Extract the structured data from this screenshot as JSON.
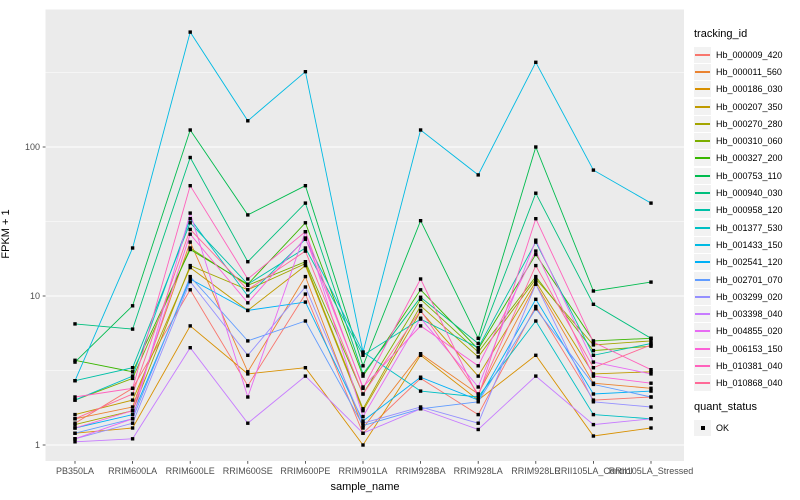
{
  "figure": {
    "background": "#FFFFFF",
    "panel_background": "#EBEBEB",
    "grid_color": "#FFFFFF",
    "tick_mark_color": "#333333",
    "axis_text_color": "#4D4D4D",
    "marker_color": "#000000"
  },
  "chart_data": {
    "type": "line",
    "title": "",
    "xlabel": "sample_name",
    "ylabel": "FPKM + 1",
    "y_scale": "log10",
    "y_ticks": [
      "1",
      "10",
      "100"
    ],
    "y_minor_gridlines": [
      3.1623,
      31.623,
      316.23
    ],
    "ylim": [
      1,
      830
    ],
    "grid": true,
    "legend_position": "right",
    "point_marker": "filled-black-square",
    "categories": [
      "PB350LA",
      "RRIM600LA",
      "RRIM600LE",
      "RRIM600SE",
      "RRIM600PE",
      "RRIM901LA",
      "RRIM928BA",
      "RRIM928LA",
      "RRIM928LE",
      "RRII105LA_Control",
      "RRII105LA_Stressed"
    ],
    "series": [
      {
        "name": "Hb_000009_420",
        "color": "#F8766D",
        "values": [
          1.4,
          2.4,
          11,
          2.5,
          10.3,
          1.2,
          2.8,
          1.6,
          8.5,
          2.0,
          2.1
        ]
      },
      {
        "name": "Hb_000011_560",
        "color": "#EA8331",
        "values": [
          1.5,
          1.8,
          23,
          3.1,
          13.5,
          1.3,
          4.1,
          2.2,
          12,
          2.6,
          2.4
        ]
      },
      {
        "name": "Hb_000186_030",
        "color": "#D89000",
        "values": [
          1.2,
          1.3,
          6.3,
          3.0,
          3.3,
          1.0,
          4.0,
          2.0,
          4.0,
          1.15,
          1.3
        ]
      },
      {
        "name": "Hb_000207_350",
        "color": "#C09B00",
        "values": [
          1.6,
          2.0,
          15.5,
          8.0,
          16,
          1.7,
          7.9,
          2.9,
          12.5,
          3.0,
          3.1
        ]
      },
      {
        "name": "Hb_000270_280",
        "color": "#A3A500",
        "values": [
          1.37,
          1.7,
          16,
          11,
          16.5,
          1.75,
          8.6,
          3.9,
          13,
          4.7,
          5.0
        ]
      },
      {
        "name": "Hb_000310_060",
        "color": "#7CAE00",
        "values": [
          2.0,
          2.8,
          21,
          11.8,
          17,
          2.2,
          9.5,
          4.2,
          13.5,
          4.3,
          4.6
        ]
      },
      {
        "name": "Hb_000327_200",
        "color": "#39B600",
        "values": [
          3.7,
          3.1,
          20.5,
          12,
          31,
          2.9,
          11,
          4.4,
          19,
          5.0,
          5.2
        ]
      },
      {
        "name": "Hb_000753_110",
        "color": "#00BB4E",
        "values": [
          3.6,
          8.6,
          130,
          35,
          55,
          3.4,
          32,
          5.2,
          100,
          10.8,
          12.4
        ]
      },
      {
        "name": "Hb_000940_030",
        "color": "#00BF7D",
        "values": [
          6.5,
          6.0,
          85,
          17,
          42,
          3.0,
          9.8,
          4.8,
          49,
          8.8,
          5.2
        ]
      },
      {
        "name": "Hb_000958_120",
        "color": "#00C0A7",
        "values": [
          2.7,
          3.3,
          31,
          12,
          21,
          4.0,
          7.0,
          4.5,
          23,
          4.0,
          4.8
        ]
      },
      {
        "name": "Hb_001377_530",
        "color": "#00BFC4",
        "values": [
          2.0,
          2.9,
          33,
          10,
          24,
          4.2,
          2.3,
          2.1,
          6.8,
          1.6,
          1.5
        ]
      },
      {
        "name": "Hb_001433_150",
        "color": "#00BAE3",
        "values": [
          2.7,
          21,
          590,
          150,
          320,
          4.2,
          130,
          65,
          370,
          70,
          42
        ]
      },
      {
        "name": "Hb_002541_120",
        "color": "#00B0F6",
        "values": [
          1.3,
          1.6,
          13,
          8.0,
          9.1,
          1.45,
          2.85,
          2.0,
          9.5,
          2.2,
          2.3
        ]
      },
      {
        "name": "Hb_002701_070",
        "color": "#619CFF",
        "values": [
          1.2,
          1.5,
          13.5,
          5.0,
          6.8,
          1.35,
          1.75,
          1.95,
          8.2,
          2.55,
          2.1
        ]
      },
      {
        "name": "Hb_003299_020",
        "color": "#9590FF",
        "values": [
          1.1,
          1.4,
          12.5,
          4.0,
          11.5,
          1.4,
          1.8,
          1.4,
          12,
          1.95,
          1.8
        ]
      },
      {
        "name": "Hb_003398_040",
        "color": "#C77CFF",
        "values": [
          1.05,
          1.1,
          4.5,
          1.4,
          2.9,
          1.2,
          1.75,
          1.27,
          2.9,
          1.37,
          1.5
        ]
      },
      {
        "name": "Hb_004855_020",
        "color": "#E76BF3",
        "values": [
          1.1,
          1.5,
          36,
          2.1,
          27,
          1.55,
          7.1,
          2.45,
          23.7,
          3.6,
          3.0
        ]
      },
      {
        "name": "Hb_006153_150",
        "color": "#FB61D7",
        "values": [
          1.3,
          1.7,
          26,
          9.0,
          24.5,
          2.45,
          6.3,
          3.4,
          20,
          2.9,
          2.6
        ]
      },
      {
        "name": "Hb_010381_040",
        "color": "#FF62BC",
        "values": [
          2.1,
          2.4,
          55,
          13,
          27,
          2.4,
          13,
          2.1,
          33,
          4.9,
          3.2
        ]
      },
      {
        "name": "Hb_010868_040",
        "color": "#FF6A98",
        "values": [
          1.5,
          2.2,
          28,
          11,
          20,
          2.2,
          8.0,
          2.2,
          16,
          3.3,
          4.7
        ]
      }
    ]
  },
  "legend": {
    "tracking_title": "tracking_id",
    "quant_title": "quant_status",
    "quant_items": [
      {
        "label": "OK",
        "marker": "black-square"
      }
    ]
  }
}
